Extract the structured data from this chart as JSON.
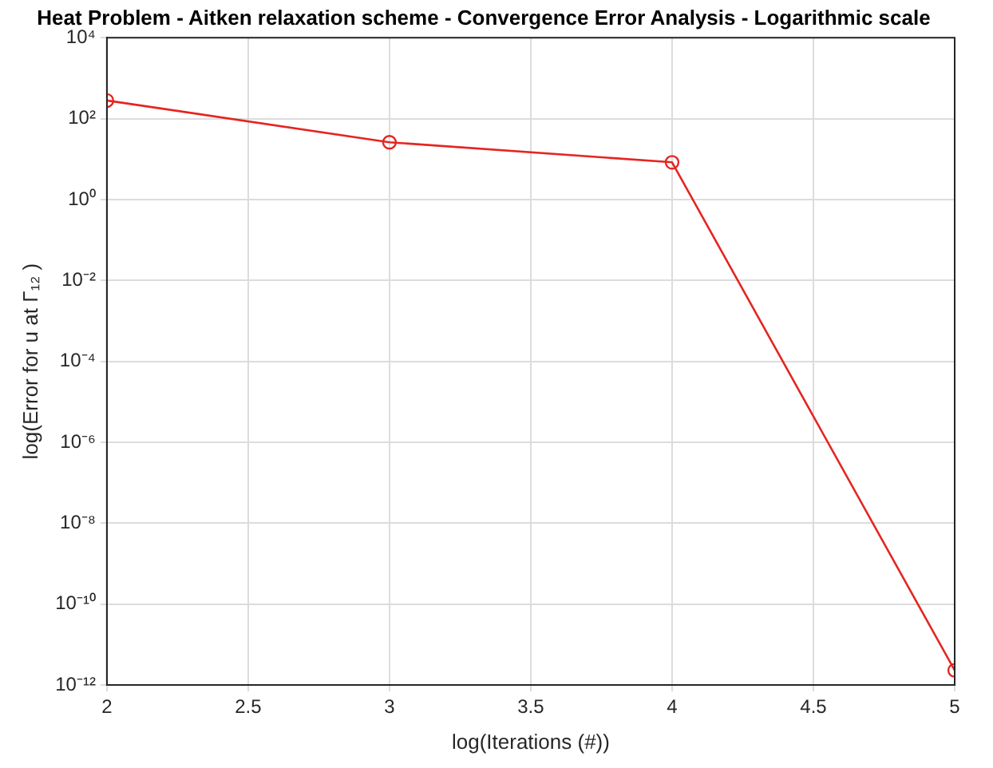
{
  "chart_data": {
    "type": "line",
    "title": "Heat Problem - Aitken relaxation scheme - Convergence Error Analysis - Logarithmic scale",
    "xlabel": "log(Iterations (#))",
    "ylabel": "log(Error for u at Γ₁₂ )",
    "x": [
      2,
      3,
      4,
      5
    ],
    "series": [
      {
        "color": "#e52521",
        "values": [
          280,
          26,
          8.3,
          2.3e-12
        ]
      }
    ],
    "xlim": [
      2,
      5
    ],
    "xticks": [
      2,
      2.5,
      3,
      3.5,
      4,
      4.5,
      5
    ],
    "ylim": [
      1e-12,
      10000.0
    ],
    "yticks": [
      {
        "value": 1e-12,
        "label": "10⁻¹²"
      },
      {
        "value": 1e-10,
        "label": "10⁻¹⁰"
      },
      {
        "value": 1e-08,
        "label": "10⁻⁸"
      },
      {
        "value": 1e-06,
        "label": "10⁻⁶"
      },
      {
        "value": 0.0001,
        "label": "10⁻⁴"
      },
      {
        "value": 0.01,
        "label": "10⁻²"
      },
      {
        "value": 1,
        "label": "10⁰"
      },
      {
        "value": 100,
        "label": "10²"
      },
      {
        "value": 10000,
        "label": "10⁴"
      }
    ],
    "log": "y",
    "grid": true,
    "legend": false,
    "marker": "circle",
    "line_style": "solid"
  }
}
